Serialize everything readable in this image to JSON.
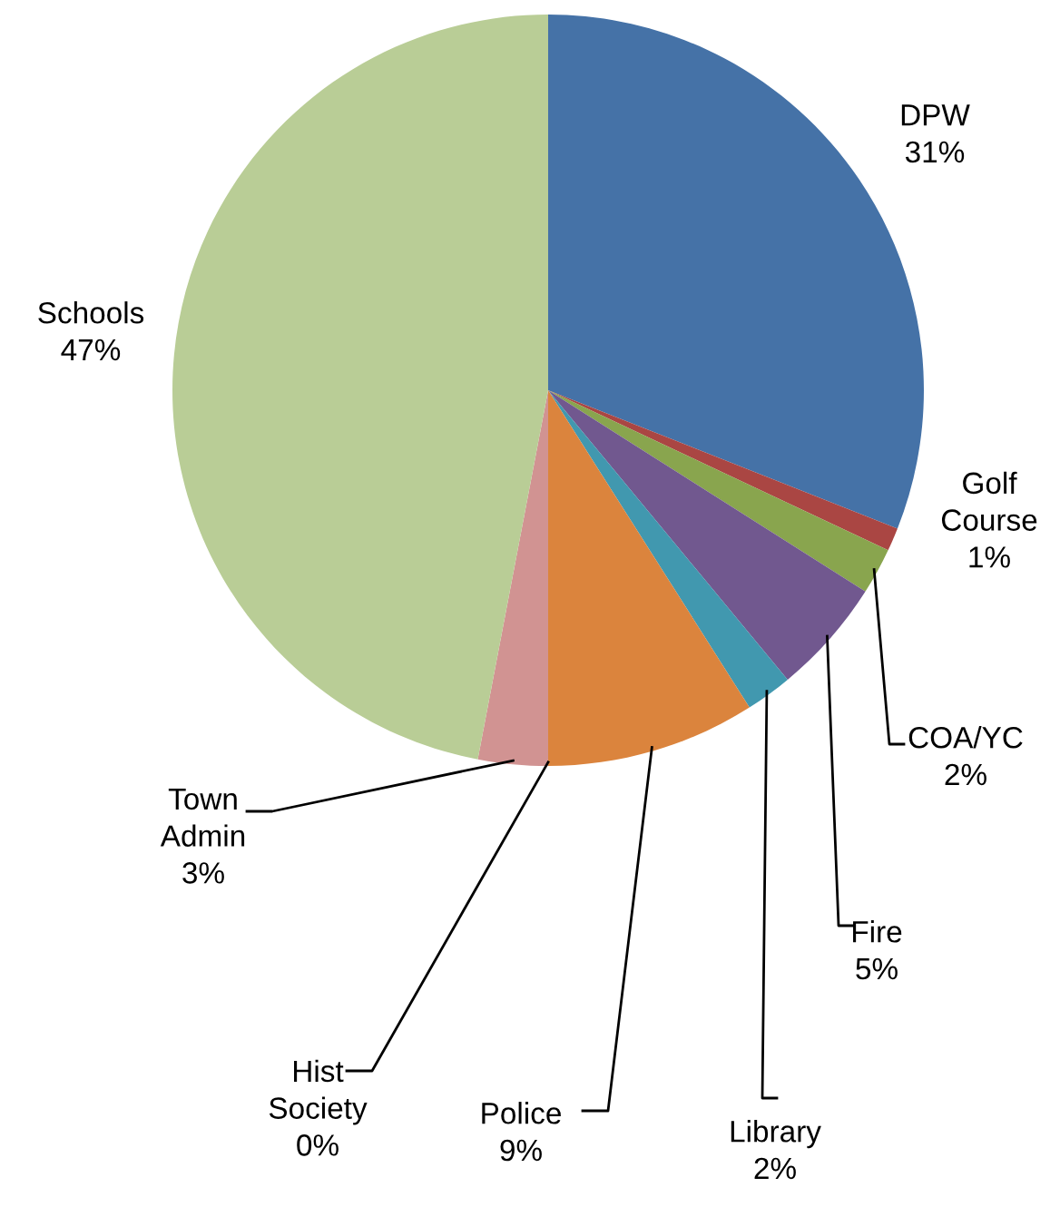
{
  "chart_data": {
    "type": "pie",
    "categories": [
      "DPW",
      "Golf Course",
      "COA/YC",
      "Fire",
      "Library",
      "Police",
      "Hist Society",
      "Town Admin",
      "Schools"
    ],
    "values": [
      31,
      1,
      2,
      5,
      2,
      9,
      0,
      3,
      47
    ],
    "colors": [
      "#4572a7",
      "#aa4643",
      "#89a54e",
      "#71588f",
      "#4198af",
      "#db843d",
      "#93a9cf",
      "#d19392",
      "#b9cd96"
    ],
    "value_labels": [
      "31%",
      "1%",
      "2%",
      "5%",
      "2%",
      "9%",
      "0%",
      "3%",
      "47%"
    ],
    "legend": false
  }
}
